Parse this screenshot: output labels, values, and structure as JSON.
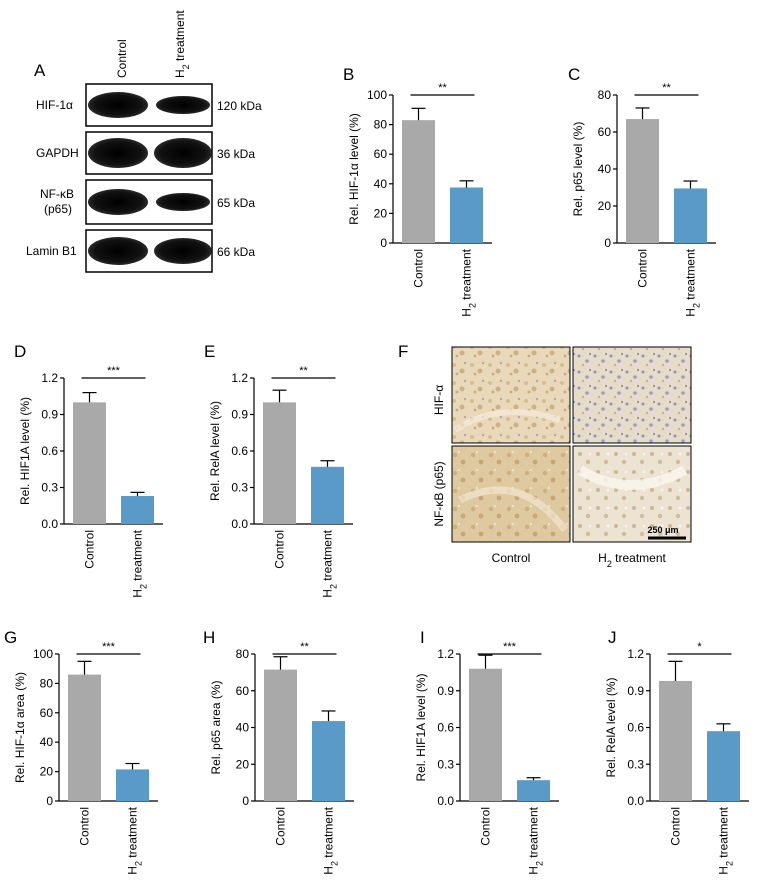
{
  "figure": {
    "panel_letters": [
      "A",
      "B",
      "C",
      "D",
      "E",
      "F",
      "G",
      "H",
      "I",
      "J"
    ],
    "blot": {
      "columns": [
        "Control",
        "H2 treatment"
      ],
      "rows": [
        {
          "label": "HIF-1α",
          "kda": "120 kDa"
        },
        {
          "label": "GAPDH",
          "kda": "36 kDa"
        },
        {
          "label": "NF-κB\n(p65)",
          "kda": "65 kDa"
        },
        {
          "label": "Lamin B1",
          "kda": "66 kDa"
        }
      ]
    },
    "ihc": {
      "row_labels": [
        "HIF-α",
        "NF-κB (p65)"
      ],
      "col_labels": [
        "Control",
        "H2 treatment"
      ],
      "scalebar": "250 μm"
    }
  },
  "chart_data": [
    {
      "panel": "B",
      "type": "bar",
      "categories": [
        "Control",
        "H2 treatment"
      ],
      "values": [
        83,
        37.5
      ],
      "errors": [
        8,
        4.5
      ],
      "ylabel": "Rel. HIF-1α level (%)",
      "ylim": [
        0,
        100
      ],
      "ticks": [
        0,
        20,
        40,
        60,
        80,
        100
      ],
      "significance": "**",
      "colors": [
        "#a9a9a9",
        "#5a9ac9"
      ]
    },
    {
      "panel": "C",
      "type": "bar",
      "categories": [
        "Control",
        "H2 treatment"
      ],
      "values": [
        67,
        29.5
      ],
      "errors": [
        6,
        4
      ],
      "ylabel": "Rel. p65 level (%)",
      "ylim": [
        0,
        80
      ],
      "ticks": [
        0,
        20,
        40,
        60,
        80
      ],
      "significance": "**",
      "colors": [
        "#a9a9a9",
        "#5a9ac9"
      ]
    },
    {
      "panel": "D",
      "type": "bar",
      "categories": [
        "Control",
        "H2 treatment"
      ],
      "values": [
        1.0,
        0.23
      ],
      "errors": [
        0.08,
        0.03
      ],
      "ylabel": "Rel. HIF1A level (%)",
      "ylim": [
        0,
        1.2
      ],
      "ticks": [
        "0.0",
        "0.3",
        "0.6",
        "0.9",
        "1.2"
      ],
      "significance": "***",
      "colors": [
        "#a9a9a9",
        "#5a9ac9"
      ]
    },
    {
      "panel": "E",
      "type": "bar",
      "categories": [
        "Control",
        "H2 treatment"
      ],
      "values": [
        1.0,
        0.47
      ],
      "errors": [
        0.1,
        0.05
      ],
      "ylabel": "Rel. RelA level (%)",
      "ylim": [
        0,
        1.2
      ],
      "ticks": [
        "0.0",
        "0.3",
        "0.6",
        "0.9",
        "1.2"
      ],
      "significance": "**",
      "colors": [
        "#a9a9a9",
        "#5a9ac9"
      ]
    },
    {
      "panel": "G",
      "type": "bar",
      "categories": [
        "Control",
        "H2 treatment"
      ],
      "values": [
        86,
        21.5
      ],
      "errors": [
        9,
        4
      ],
      "ylabel": "Rel. HIF-1α area (%)",
      "ylim": [
        0,
        100
      ],
      "ticks": [
        0,
        20,
        40,
        60,
        80,
        100
      ],
      "significance": "***",
      "colors": [
        "#a9a9a9",
        "#5a9ac9"
      ]
    },
    {
      "panel": "H",
      "type": "bar",
      "categories": [
        "Control",
        "H2 treatment"
      ],
      "values": [
        71.5,
        43.5
      ],
      "errors": [
        7,
        5.5
      ],
      "ylabel": "Rel. p65 area (%)",
      "ylim": [
        0,
        80
      ],
      "ticks": [
        0,
        20,
        40,
        60,
        80
      ],
      "significance": "**",
      "colors": [
        "#a9a9a9",
        "#5a9ac9"
      ]
    },
    {
      "panel": "I",
      "type": "bar",
      "categories": [
        "Control",
        "H2 treatment"
      ],
      "values": [
        1.08,
        0.17
      ],
      "errors": [
        0.11,
        0.02
      ],
      "ylabel": "Rel. HIF1A level (%)",
      "ylim": [
        0,
        1.2
      ],
      "ticks": [
        "0.0",
        "0.3",
        "0.6",
        "0.9",
        "1.2"
      ],
      "significance": "***",
      "colors": [
        "#a9a9a9",
        "#5a9ac9"
      ]
    },
    {
      "panel": "J",
      "type": "bar",
      "categories": [
        "Control",
        "H2 treatment"
      ],
      "values": [
        0.98,
        0.57
      ],
      "errors": [
        0.16,
        0.06
      ],
      "ylabel": "Rel. RelA level (%)",
      "ylim": [
        0,
        1.2
      ],
      "ticks": [
        "0.0",
        "0.3",
        "0.6",
        "0.9",
        "1.2"
      ],
      "significance": "*",
      "colors": [
        "#a9a9a9",
        "#5a9ac9"
      ]
    }
  ]
}
